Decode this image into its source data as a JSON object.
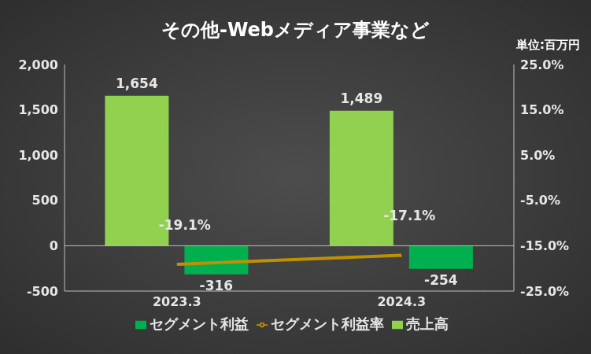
{
  "chart_data": {
    "type": "bar",
    "title": "その他-Webメディア事業など",
    "annotations": [
      "単位:百万円"
    ],
    "categories": [
      "2023.3",
      "2024.3"
    ],
    "series": [
      {
        "name": "売上高",
        "type": "bar",
        "color": "#92d050",
        "values": [
          1654,
          1489
        ],
        "value_labels": [
          "1,654",
          "1,489"
        ]
      },
      {
        "name": "セグメント利益",
        "type": "bar",
        "color": "#00b050",
        "values": [
          -316,
          -254
        ]
      },
      {
        "name": "セグメント利益率",
        "type": "line",
        "axis": "y2",
        "color": "#bf9000",
        "values": [
          -19.1,
          -17.1
        ],
        "value_labels": [
          "-19.1%",
          "-17.1%"
        ]
      }
    ],
    "ylim": [
      -500,
      2000
    ],
    "yticks": [
      -500,
      0,
      500,
      {
        "value": 1000,
        "label": "1,000"
      },
      {
        "value": 1500,
        "label": "1,500"
      },
      {
        "value": 2000,
        "label": "2,000"
      }
    ],
    "y2lim": [
      -25,
      25
    ],
    "y2ticks": [
      {
        "value": -25,
        "label": "-25.0%"
      },
      {
        "value": -15,
        "label": "-15.0%"
      },
      {
        "value": -5,
        "label": "-5.0%"
      },
      {
        "value": 5,
        "label": "5.0%"
      },
      {
        "value": 15,
        "label": "15.0%"
      },
      {
        "value": 25,
        "label": "25.0%"
      }
    ],
    "data_labels": true,
    "legend": "bottom",
    "grid": false
  }
}
